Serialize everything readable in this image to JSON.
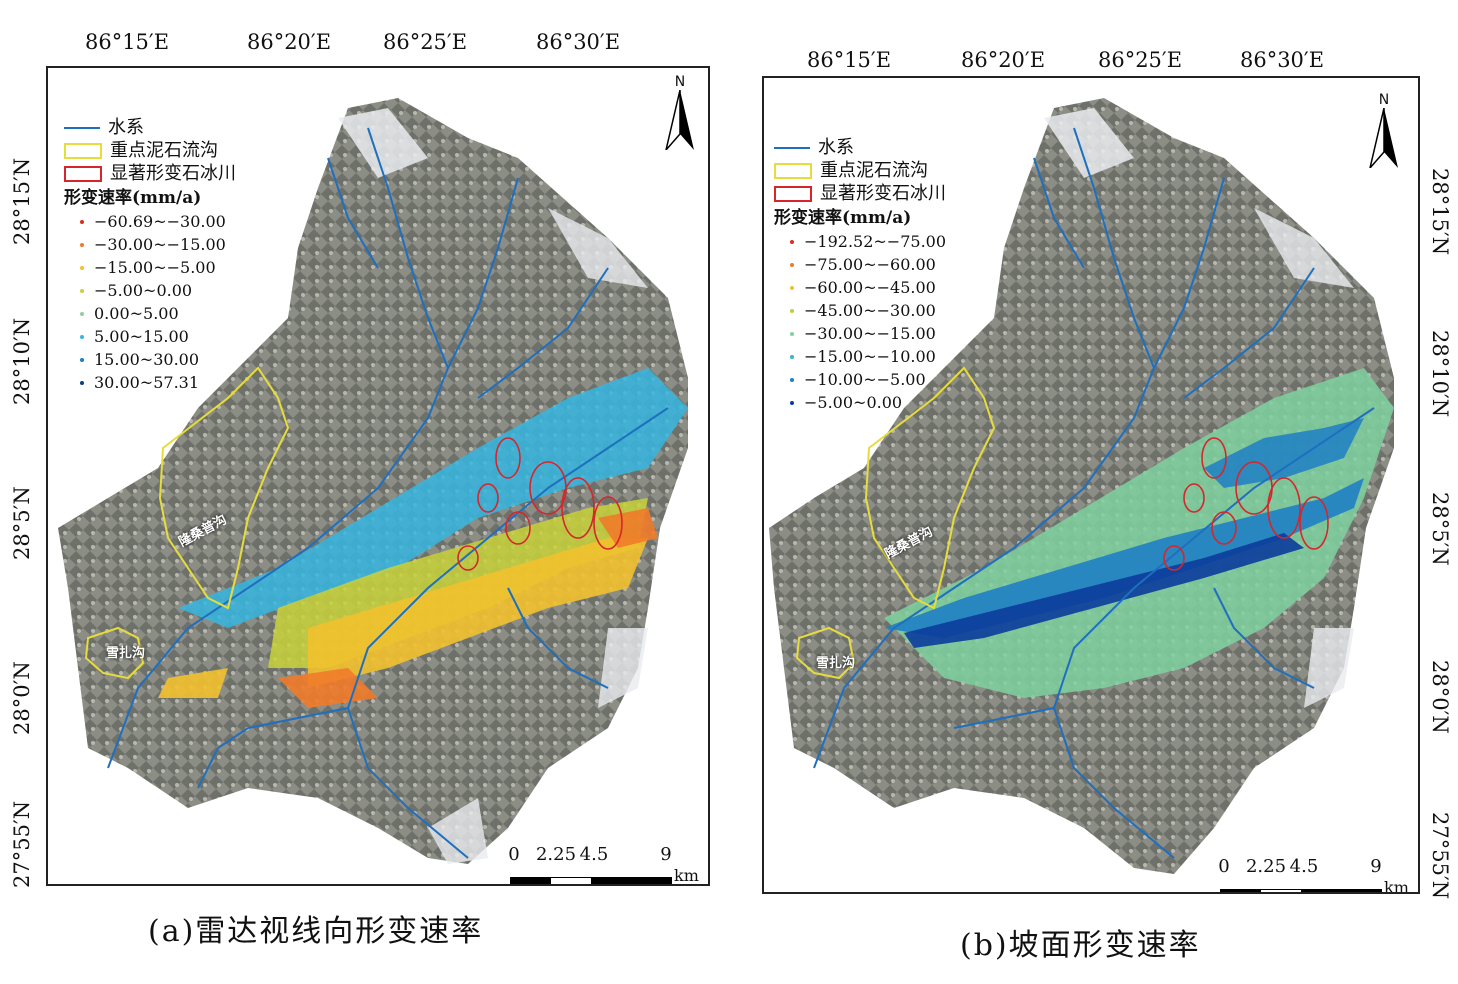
{
  "panel_a": {
    "lon_ticks": [
      "86°15′E",
      "86°20′E",
      "86°25′E",
      "86°30′E"
    ],
    "lat_ticks": [
      "28°15′N",
      "28°10′N",
      "28°5′N",
      "28°0′N",
      "27°55′N"
    ],
    "legend": {
      "river": "水系",
      "debris_gully": "重点泥石流沟",
      "rock_glacier": "显著形变石冰川",
      "rate_title": "形变速率(mm/a)",
      "classes": [
        {
          "label": "−60.69~−30.00",
          "color": "#d7301f"
        },
        {
          "label": "−30.00~−15.00",
          "color": "#f07b2a"
        },
        {
          "label": "−15.00~−5.00",
          "color": "#f2c12e"
        },
        {
          "label": "−5.00~0.00",
          "color": "#c8d23a"
        },
        {
          "label": "0.00~5.00",
          "color": "#8fd19e"
        },
        {
          "label": "5.00~15.00",
          "color": "#36b6e0"
        },
        {
          "label": "15.00~30.00",
          "color": "#1f7fc4"
        },
        {
          "label": "30.00~57.31",
          "color": "#0b3c8c"
        }
      ]
    },
    "north_label": "N",
    "scale": {
      "labels": [
        "0",
        "2.25",
        "4.5",
        "9"
      ],
      "unit": "km"
    },
    "gully_labels": [
      "隆桑普沟",
      "雪扎沟"
    ],
    "caption": "(a)雷达视线向形变速率"
  },
  "panel_b": {
    "lon_ticks": [
      "86°15′E",
      "86°20′E",
      "86°25′E",
      "86°30′E"
    ],
    "lat_ticks": [
      "28°15′N",
      "28°10′N",
      "28°5′N",
      "28°0′N",
      "27°55′N"
    ],
    "legend": {
      "river": "水系",
      "debris_gully": "重点泥石流沟",
      "rock_glacier": "显著形变石冰川",
      "rate_title": "形变速率(mm/a)",
      "classes": [
        {
          "label": "−192.52~−75.00",
          "color": "#d7301f"
        },
        {
          "label": "−75.00~−60.00",
          "color": "#f07b2a"
        },
        {
          "label": "−60.00~−45.00",
          "color": "#f2c12e"
        },
        {
          "label": "−45.00~−30.00",
          "color": "#b8d23a"
        },
        {
          "label": "−30.00~−15.00",
          "color": "#7fd1a0"
        },
        {
          "label": "−15.00~−10.00",
          "color": "#36b6c8"
        },
        {
          "label": "−10.00~−5.00",
          "color": "#1f7fc4"
        },
        {
          "label": "−5.00~0.00",
          "color": "#0b3c9c"
        }
      ]
    },
    "north_label": "N",
    "scale": {
      "labels": [
        "0",
        "2.25",
        "4.5",
        "9"
      ],
      "unit": "km"
    },
    "gully_labels": [
      "隆桑普沟",
      "雪扎沟"
    ],
    "caption": "(b)坡面形变速率"
  },
  "colors": {
    "river": "#1f6fbf",
    "debris_gully_outline": "#e6dc3c",
    "rock_glacier_outline": "#d6262b",
    "terrain_dark": "#3e4440",
    "terrain_light": "#c9c7c0",
    "snow": "#eef0f4"
  }
}
